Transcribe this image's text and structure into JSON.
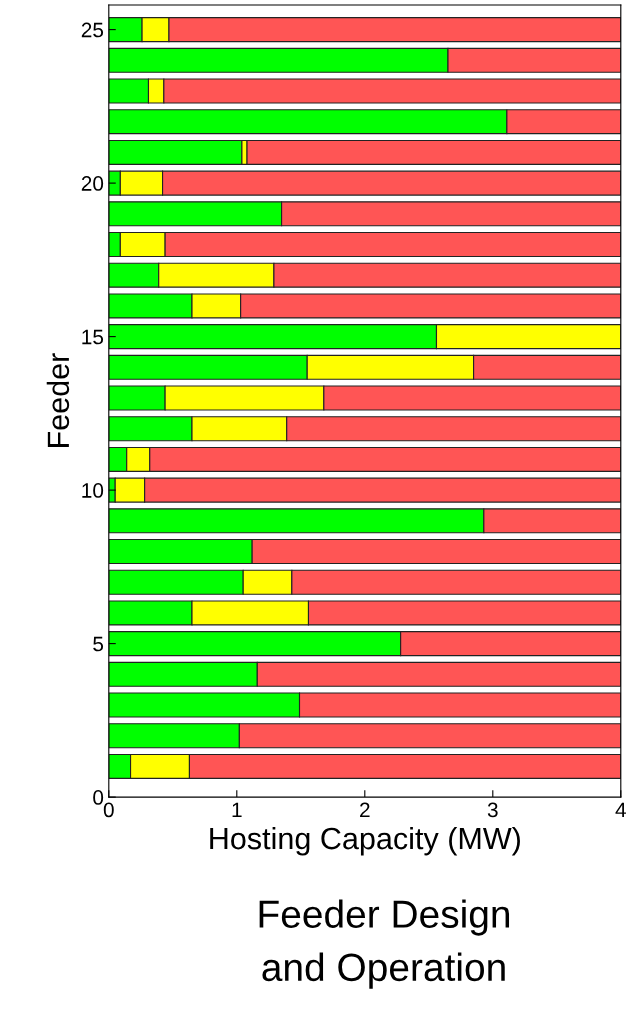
{
  "chart_data": {
    "type": "bar",
    "orientation": "horizontal",
    "stacked": true,
    "x": [
      1,
      2,
      3,
      4,
      5,
      6,
      7,
      8,
      9,
      10,
      11,
      12,
      13,
      14,
      15,
      16,
      17,
      18,
      19,
      20,
      21,
      22,
      23,
      24,
      25
    ],
    "series": [
      {
        "color": "#00ff00",
        "values": [
          0.17,
          1.02,
          1.49,
          1.16,
          2.28,
          0.65,
          1.05,
          1.12,
          2.93,
          0.05,
          0.14,
          0.65,
          0.44,
          1.55,
          2.56,
          0.65,
          0.39,
          0.09,
          1.35,
          0.09,
          1.04,
          3.11,
          0.31,
          2.65,
          0.26
        ]
      },
      {
        "color": "#ffff00",
        "values": [
          0.46,
          null,
          null,
          null,
          null,
          0.91,
          0.38,
          null,
          null,
          0.23,
          0.18,
          0.74,
          1.24,
          1.3,
          1.44,
          0.38,
          0.9,
          0.35,
          null,
          0.33,
          0.04,
          null,
          0.12,
          null,
          0.21
        ]
      },
      {
        "color": "#ff5555",
        "values": [
          3.37,
          2.98,
          2.51,
          2.84,
          1.72,
          2.44,
          2.57,
          2.88,
          1.07,
          3.72,
          3.68,
          2.61,
          2.32,
          1.15,
          null,
          2.97,
          2.71,
          3.56,
          2.65,
          3.58,
          2.92,
          0.89,
          3.57,
          1.35,
          3.53
        ]
      }
    ],
    "xlim": [
      0,
      4
    ],
    "xticks": [
      0,
      1,
      2,
      3,
      4
    ],
    "ylim": [
      0,
      25.8
    ],
    "yticks": [
      0,
      5,
      10,
      15,
      20,
      25
    ],
    "xlabel": "Hosting Capacity (MW)",
    "ylabel": "Feeder",
    "annotations": [
      "Feeder Design\nand Operation"
    ],
    "grid": false,
    "legend": false
  }
}
